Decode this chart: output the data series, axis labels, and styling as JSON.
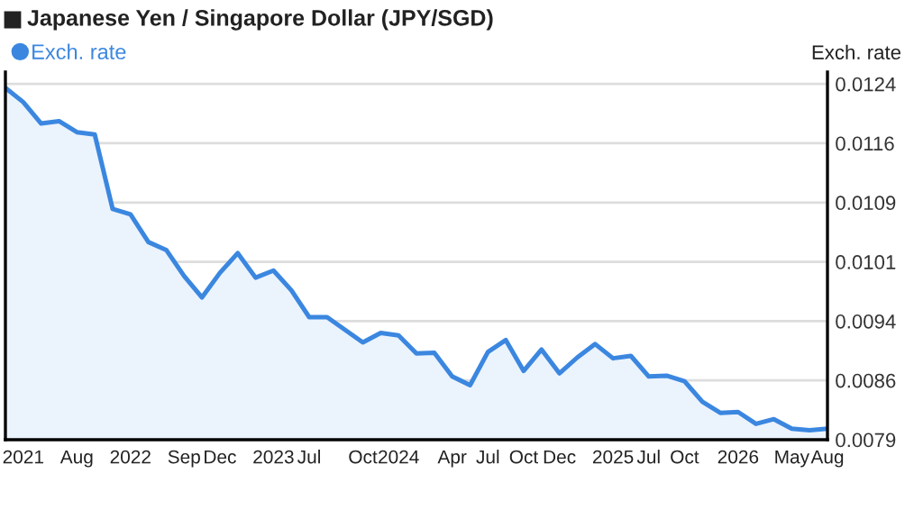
{
  "chart_data": {
    "type": "area",
    "title": "Japanese Yen / Singapore Dollar (JPY/SGD)",
    "ylabel": "Exch. rate",
    "categories": [
      null,
      "2021",
      null,
      null,
      "Aug",
      null,
      null,
      "2022",
      null,
      null,
      "Sep",
      null,
      "Dec",
      null,
      null,
      "2023",
      null,
      "Jul",
      null,
      null,
      "Oct",
      null,
      "2024",
      null,
      null,
      "Apr",
      null,
      "Jul",
      null,
      "Oct",
      null,
      "Dec",
      null,
      null,
      "2025",
      null,
      "Jul",
      null,
      "Oct",
      null,
      null,
      "2026",
      null,
      null,
      "May",
      null,
      "Aug"
    ],
    "series": [
      {
        "name": "Exch. rate",
        "color": "#3b87e0",
        "values": [
          0.01235,
          0.01217,
          0.0119,
          0.01193,
          0.01179,
          0.01176,
          0.01082,
          0.01075,
          0.0104,
          0.0103,
          0.00997,
          0.0097,
          0.01001,
          0.01026,
          0.00995,
          0.01004,
          0.00979,
          0.00945,
          0.00945,
          0.00929,
          0.00913,
          0.00925,
          0.00922,
          0.00899,
          0.009,
          0.0087,
          0.00859,
          0.00901,
          0.00916,
          0.00877,
          0.00904,
          0.00874,
          0.00894,
          0.00911,
          0.00893,
          0.00896,
          0.0087,
          0.00871,
          0.00864,
          0.00838,
          0.00824,
          0.00825,
          0.0081,
          0.00816,
          0.00804,
          0.00802,
          0.00804
        ]
      }
    ],
    "ylim": [
      0.0079,
      0.01255
    ],
    "yticks": [
      {
        "value": 0.0079,
        "label": "0.0079"
      },
      {
        "value": 0.00865,
        "label": "0.0086"
      },
      {
        "value": 0.0094,
        "label": "0.0094"
      },
      {
        "value": 0.01015,
        "label": "0.0101"
      },
      {
        "value": 0.0109,
        "label": "0.0109"
      },
      {
        "value": 0.01165,
        "label": "0.0116"
      },
      {
        "value": 0.0124,
        "label": "0.0124"
      }
    ],
    "grid": "y",
    "legend": "top left",
    "marker": "none",
    "line_style": "solid"
  }
}
